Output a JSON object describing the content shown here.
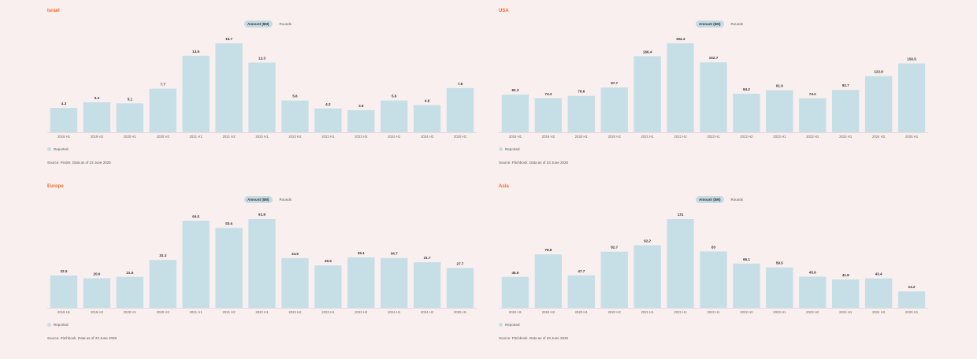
{
  "toggle": {
    "amount_label": "Amount ($M)",
    "rounds_label": "Rounds"
  },
  "legend_label": "Reported",
  "bar_color": "#c6dfe7",
  "title_color": "#f26a21",
  "chart_data": [
    {
      "type": "bar",
      "title": "Israel",
      "categories": [
        "2019 H1",
        "2019 H2",
        "2020 H1",
        "2020 H2",
        "2021 H1",
        "2021 H2",
        "2022 H1",
        "2022 H2",
        "2023 H1",
        "2023 H2",
        "2024 H1",
        "2024 H2",
        "2025 H1"
      ],
      "values": [
        4.3,
        5.3,
        5.1,
        7.7,
        13.5,
        15.7,
        12.3,
        5.6,
        4.2,
        3.9,
        5.6,
        4.8,
        7.8
      ],
      "ylim": [
        0,
        15.7
      ],
      "source": "Source: Finder. Data as of 23 June 2025"
    },
    {
      "type": "bar",
      "title": "USA",
      "categories": [
        "2019 H1",
        "2019 H2",
        "2020 H1",
        "2020 H2",
        "2021 H1",
        "2021 H2",
        "2022 H1",
        "2022 H2",
        "2023 H1",
        "2023 H2",
        "2024 H1",
        "2024 H2",
        "2025 H1"
      ],
      "values": [
        82.3,
        74.3,
        79.6,
        97.7,
        166.4,
        194.4,
        152.7,
        84.2,
        91.9,
        74.2,
        92.7,
        122.8,
        150.5
      ],
      "ylim": [
        0,
        194.4
      ],
      "source": "Source: Pitchbook. Data as of 23 June 2025"
    },
    {
      "type": "bar",
      "title": "Europe",
      "categories": [
        "2019 H1",
        "2019 H2",
        "2020 H1",
        "2020 H2",
        "2021 H1",
        "2021 H2",
        "2022 H1",
        "2022 H2",
        "2023 H1",
        "2023 H2",
        "2024 H1",
        "2024 H2",
        "2025 H1"
      ],
      "values": [
        22.5,
        20.6,
        21.5,
        33.3,
        60.5,
        55.6,
        61.9,
        34.6,
        29.5,
        35.1,
        34.7,
        31.7,
        27.7
      ],
      "ylim": [
        0,
        61.9
      ],
      "source": "Source: Pitchbook. Data as of 23 June 2025"
    },
    {
      "type": "bar",
      "title": "Asia",
      "categories": [
        "2019 H1",
        "2019 H2",
        "2020 H1",
        "2020 H2",
        "2021 H1",
        "2021 H2",
        "2022 H1",
        "2022 H2",
        "2023 H1",
        "2023 H2",
        "2024 H1",
        "2024 H2",
        "2025 H1"
      ],
      "values": [
        45.5,
        78.8,
        47.7,
        82.7,
        92.2,
        131,
        83,
        65.1,
        59.5,
        45.9,
        41.8,
        43.4,
        24.2
      ],
      "ylim": [
        0,
        131
      ],
      "source": "Source: Pitchbook. Data as of 23 June 2025"
    }
  ]
}
